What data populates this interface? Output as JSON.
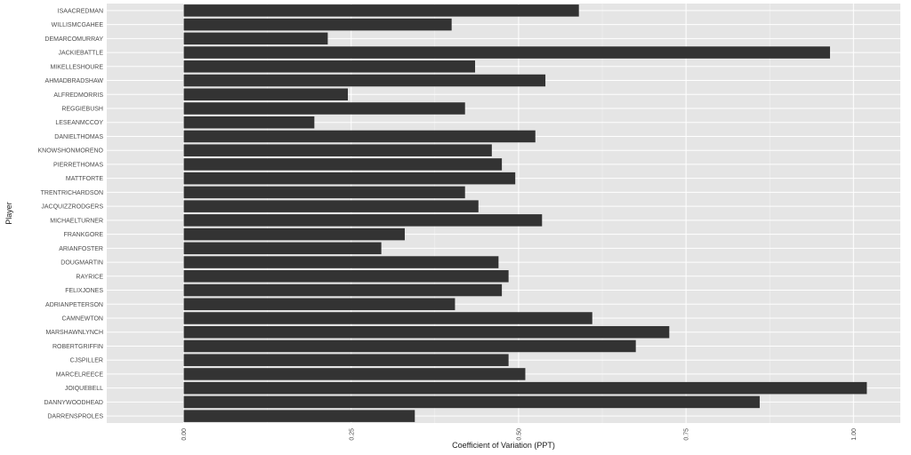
{
  "chart_data": {
    "type": "bar",
    "orientation": "horizontal",
    "xlabel": "Coefficient of Variation (PPT)",
    "ylabel": "Player",
    "xlim": [
      -0.115,
      1.07
    ],
    "xticks": [
      0.0,
      0.25,
      0.5,
      0.75,
      1.0
    ],
    "xtick_labels": [
      "0.00",
      "0.25",
      "0.50",
      "0.75",
      "1.00"
    ],
    "grid": true,
    "background_color": "#e5e5e5",
    "bar_color": "#333333",
    "grid_color": "#ffffff",
    "categories": [
      "ISAACREDMAN",
      "WILLISMCGAHEE",
      "DEMARCOMURRAY",
      "JACKIEBATTLE",
      "MIKELLESHOURE",
      "AHMADBRADSHAW",
      "ALFREDMORRIS",
      "REGGIEBUSH",
      "LESEANMCCOY",
      "DANIELTHOMAS",
      "KNOWSHONMORENO",
      "PIERRETHOMAS",
      "MATTFORTE",
      "TRENTRICHARDSON",
      "JACQUIZZRODGERS",
      "MICHAELTURNER",
      "FRANKGORE",
      "ARIANFOSTER",
      "DOUGMARTIN",
      "RAYRICE",
      "FELIXJONES",
      "ADRIANPETERSON",
      "CAMNEWTON",
      "MARSHAWNLYNCH",
      "ROBERTGRIFFIN",
      "CJSPILLER",
      "MARCELREECE",
      "JOIQUEBELL",
      "DANNYWOODHEAD",
      "DARRENSPROLES"
    ],
    "values": [
      0.59,
      0.4,
      0.215,
      0.965,
      0.435,
      0.54,
      0.245,
      0.42,
      0.195,
      0.525,
      0.46,
      0.475,
      0.495,
      0.42,
      0.44,
      0.535,
      0.33,
      0.295,
      0.47,
      0.485,
      0.475,
      0.405,
      0.61,
      0.725,
      0.675,
      0.485,
      0.51,
      1.02,
      0.86,
      0.345
    ]
  }
}
